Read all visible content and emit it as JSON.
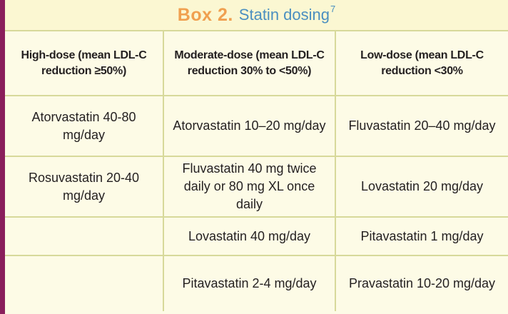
{
  "box": {
    "number": "Box 2.",
    "title": "Statin dosing",
    "reference": "7"
  },
  "headers": [
    "High-dose (mean LDL-C reduction ≥50%)",
    "Moderate-dose (mean LDL-C reduction 30% to <50%)",
    "Low-dose (mean LDL-C reduction <30%"
  ],
  "rows": [
    [
      "Atorvastatin 40-80 mg/day",
      "Atorvastatin 10–20 mg/day",
      "Fluvastatin 20–40 mg/day"
    ],
    [
      "Rosuvastatin 20-40 mg/day",
      "Fluvastatin 40 mg twice daily or 80 mg XL once daily",
      "Lovastatin 20 mg/day"
    ],
    [
      "",
      "Lovastatin 40 mg/day",
      "Pitavastatin 1 mg/day"
    ],
    [
      "",
      "Pitavastatin 2-4 mg/day",
      "Pravastatin 10-20 mg/day"
    ]
  ],
  "colors": {
    "accent_rule": "#8a1f5c",
    "box_number": "#f0a050",
    "title": "#4a8fc0",
    "background": "#fdfbe6",
    "grid": "#d7d99a"
  }
}
